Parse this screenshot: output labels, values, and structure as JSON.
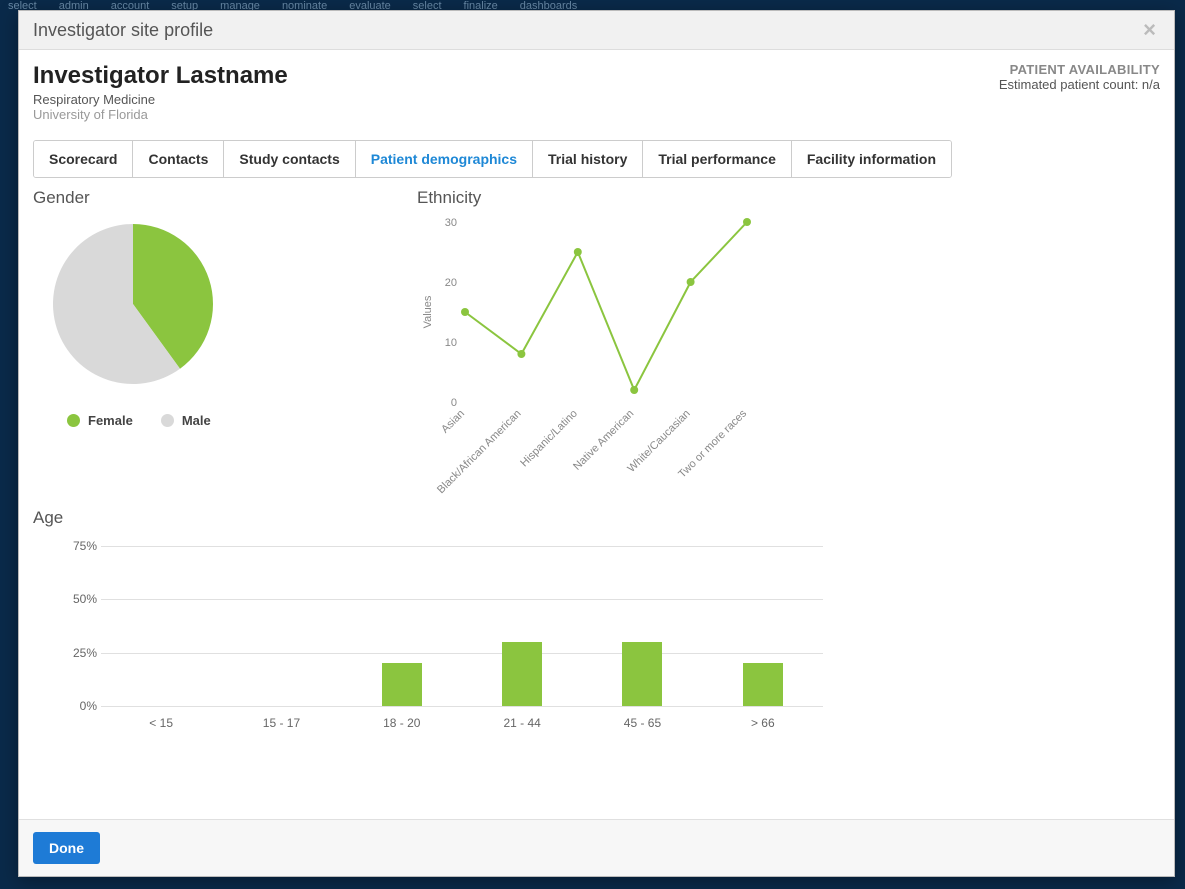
{
  "nav_items": [
    "admin",
    "account",
    "setup",
    "manage",
    "nominate",
    "evaluate",
    "select",
    "finalize",
    "dashboards"
  ],
  "nav_brand": "select",
  "modal": {
    "title": "Investigator site profile",
    "done_label": "Done"
  },
  "investigator": {
    "name": "Investigator Lastname",
    "department": "Respiratory Medicine",
    "institution": "University of Florida"
  },
  "availability": {
    "label": "PATIENT AVAILABILITY",
    "count_label": "Estimated patient count: n/a"
  },
  "tabs": [
    {
      "label": "Scorecard",
      "active": false
    },
    {
      "label": "Contacts",
      "active": false
    },
    {
      "label": "Study contacts",
      "active": false
    },
    {
      "label": "Patient demographics",
      "active": true
    },
    {
      "label": "Trial history",
      "active": false
    },
    {
      "label": "Trial performance",
      "active": false
    },
    {
      "label": "Facility information",
      "active": false
    }
  ],
  "gender_chart": {
    "title": "Gender",
    "type": "pie",
    "slices": [
      {
        "label": "Female",
        "value": 40,
        "color": "#8bc53f"
      },
      {
        "label": "Male",
        "value": 60,
        "color": "#d9d9d9"
      }
    ],
    "radius": 80
  },
  "ethnicity_chart": {
    "title": "Ethnicity",
    "type": "line",
    "y_axis_label": "Values",
    "y_ticks": [
      0,
      10,
      20,
      30
    ],
    "ylim": [
      0,
      30
    ],
    "categories": [
      "Asian",
      "Black/African American",
      "Hispanic/Latino",
      "Native American",
      "White/Caucasian",
      "Two or more races"
    ],
    "values": [
      15,
      8,
      25,
      2,
      20,
      30
    ],
    "line_color": "#8bc53f",
    "marker_color": "#8bc53f",
    "grid_color": "#e0e0e0",
    "label_fontsize": 11,
    "label_color": "#888888"
  },
  "age_chart": {
    "title": "Age",
    "type": "bar",
    "y_ticks": [
      0,
      25,
      50,
      75
    ],
    "y_tick_suffix": "%",
    "ylim": [
      0,
      75
    ],
    "categories": [
      "< 15",
      "15 - 17",
      "18 - 20",
      "21 - 44",
      "45 - 65",
      "> 66"
    ],
    "values": [
      0,
      0,
      20,
      30,
      30,
      20
    ],
    "bar_color": "#8bc53f",
    "grid_color": "#e0e0e0",
    "label_color": "#666666"
  }
}
